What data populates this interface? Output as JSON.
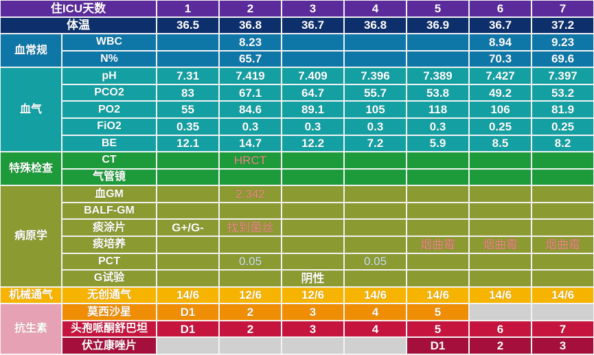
{
  "header": {
    "day_label": "住ICU天数",
    "days": [
      "1",
      "2",
      "3",
      "4",
      "5",
      "6",
      "7"
    ]
  },
  "temperature": {
    "label": "体温",
    "values": [
      "36.5",
      "36.8",
      "36.7",
      "36.8",
      "36.9",
      "36.7",
      "37.2"
    ]
  },
  "groups": [
    {
      "label": "血常规",
      "rows": [
        {
          "label": "WBC",
          "values": [
            "",
            "8.23",
            "",
            "",
            "",
            "8.94",
            "9.23"
          ]
        },
        {
          "label": "N%",
          "values": [
            "",
            "65.7",
            "",
            "",
            "",
            "70.3",
            "69.6"
          ]
        }
      ]
    },
    {
      "label": "血气",
      "rows": [
        {
          "label": "pH",
          "values": [
            "7.31",
            "7.419",
            "7.409",
            "7.396",
            "7.389",
            "7.427",
            "7.397"
          ]
        },
        {
          "label": "PCO2",
          "values": [
            "83",
            "67.1",
            "64.7",
            "55.7",
            "53.8",
            "49.2",
            "53.2"
          ]
        },
        {
          "label": "PO2",
          "values": [
            "55",
            "84.6",
            "89.1",
            "105",
            "118",
            "106",
            "81.9"
          ]
        },
        {
          "label": "FiO2",
          "values": [
            "0.35",
            "0.3",
            "0.3",
            "0.3",
            "0.3",
            "0.25",
            "0.25"
          ]
        },
        {
          "label": "BE",
          "values": [
            "12.1",
            "14.7",
            "12.2",
            "7.2",
            "5.9",
            "8.5",
            "8.2"
          ]
        }
      ]
    },
    {
      "label": "特殊检查",
      "rows": [
        {
          "label": "CT",
          "values": [
            "",
            "HRCT",
            "",
            "",
            "",
            "",
            ""
          ]
        },
        {
          "label": "气管镜",
          "values": [
            "",
            "",
            "",
            "",
            "",
            "",
            ""
          ]
        }
      ]
    },
    {
      "label": "病原学",
      "rows": [
        {
          "label": "血GM",
          "values": [
            "",
            "2.342",
            "",
            "",
            "",
            "",
            ""
          ]
        },
        {
          "label": "BALF-GM",
          "values": [
            "",
            "",
            "",
            "",
            "",
            "",
            ""
          ]
        },
        {
          "label": "痰涂片",
          "values": [
            "G+/G-",
            "找到菌丝",
            "",
            "",
            "",
            "",
            ""
          ]
        },
        {
          "label": "痰培养",
          "values": [
            "",
            "",
            "",
            "",
            "烟曲霉",
            "烟曲霉",
            "烟曲霉"
          ]
        },
        {
          "label": "PCT",
          "values": [
            "",
            "0.05",
            "",
            "0.05",
            "",
            "",
            ""
          ]
        },
        {
          "label": "G试验",
          "values": [
            "",
            "",
            "阴性",
            "",
            "",
            "",
            ""
          ]
        }
      ]
    },
    {
      "label": "机械通气",
      "rows": [
        {
          "label": "无创通气",
          "values": [
            "14/6",
            "12/6",
            "12/6",
            "14/6",
            "14/6",
            "14/6",
            "14/6"
          ]
        }
      ]
    },
    {
      "label": "抗生素",
      "rows": [
        {
          "label": "莫西沙星",
          "values": [
            "D1",
            "2",
            "3",
            "4",
            "5",
            "",
            ""
          ]
        },
        {
          "label": "头孢哌酮舒巴坦",
          "values": [
            "D1",
            "2",
            "3",
            "4",
            "5",
            "6",
            "7"
          ]
        },
        {
          "label": "伏立康唑片",
          "values": [
            "",
            "",
            "",
            "",
            "D1",
            "2",
            "3"
          ]
        }
      ]
    }
  ],
  "colors": {
    "header_purple": "#5b2b9b",
    "temperature_navy": "#0d2f6b",
    "blood_routine_blue": "#0f77a8",
    "blood_gas_teal": "#14a0a2",
    "special_exam_green": "#1d9a3a",
    "pathogen_olive": "#8c9a32",
    "ventilation_orange": "#f6b300",
    "moxifloxacin_orange": "#ef8e05",
    "cefoperazone_red": "#c5143d",
    "voriconazole_maroon": "#a40f3b",
    "empty_gray": "#d0d0d0",
    "highlight_red_text": "#f28a8a",
    "highlight_blue_text": "#cfe6f7"
  }
}
